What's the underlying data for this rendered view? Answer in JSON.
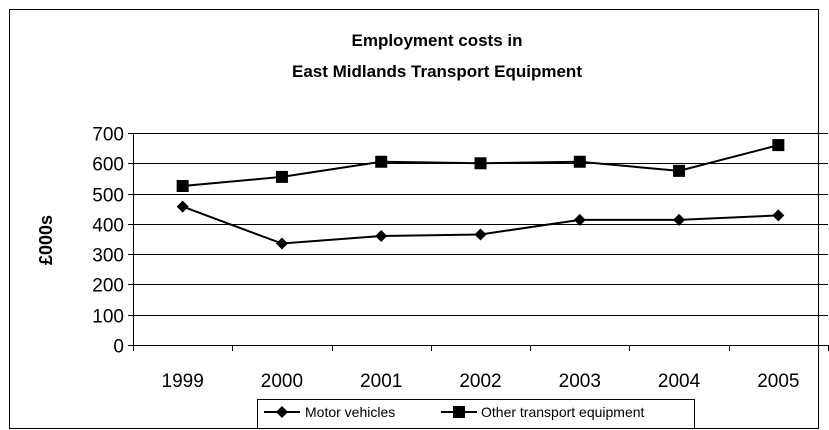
{
  "chart_data": {
    "type": "line",
    "title": "Employment costs in\nEast Midlands Transport Equipment",
    "title_lines": [
      "Employment costs in",
      "East Midlands Transport Equipment"
    ],
    "xlabel": "",
    "ylabel": "£000s",
    "x": [
      "1999",
      "2000",
      "2001",
      "2002",
      "2003",
      "2004",
      "2005"
    ],
    "ylim": [
      0,
      700
    ],
    "yticks": [
      0,
      100,
      200,
      300,
      400,
      500,
      600,
      700
    ],
    "grid": true,
    "legend_position": "bottom",
    "series": [
      {
        "name": "Motor vehicles",
        "marker": "diamond",
        "color": "#000000",
        "values": [
          457,
          335,
          360,
          365,
          413,
          413,
          428
        ]
      },
      {
        "name": "Other transport equipment",
        "marker": "square",
        "color": "#000000",
        "values": [
          525,
          555,
          605,
          600,
          605,
          575,
          660
        ]
      }
    ]
  }
}
